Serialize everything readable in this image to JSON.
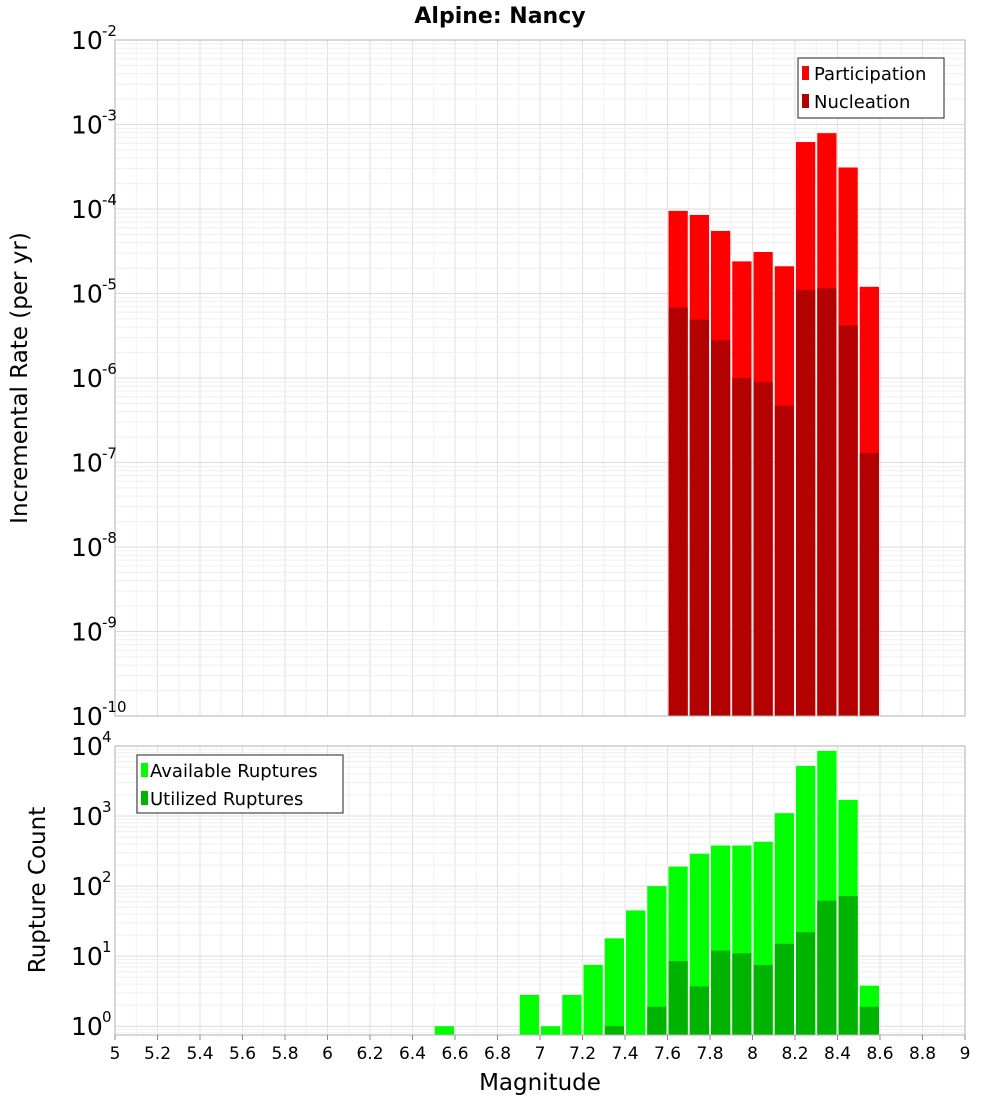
{
  "chart_data": [
    {
      "type": "bar",
      "title": "Alpine: Nancy",
      "ylabel": "Incremental Rate (per yr)",
      "xlabel": "",
      "yscale": "log",
      "ylim": [
        1e-10,
        0.01
      ],
      "xlim": [
        5,
        9
      ],
      "bin_width": 0.1,
      "grid": true,
      "legend_position": "top-right",
      "x": [
        7.65,
        7.75,
        7.85,
        7.95,
        8.05,
        8.15,
        8.25,
        8.35,
        8.45,
        8.55
      ],
      "series": [
        {
          "name": "Participation",
          "color": "#ff0000",
          "values": [
            9.5e-05,
            8.5e-05,
            5.5e-05,
            2.4e-05,
            3.1e-05,
            2.1e-05,
            0.00062,
            0.00079,
            0.00031,
            1.2e-05
          ]
        },
        {
          "name": "Nucleation",
          "color": "#b30000",
          "values": [
            6.8e-06,
            4.9e-06,
            2.8e-06,
            1e-06,
            9e-07,
            4.7e-07,
            1.1e-05,
            1.15e-05,
            4.2e-06,
            1.3e-07
          ]
        }
      ]
    },
    {
      "type": "bar",
      "title": "",
      "ylabel": "Rupture Count",
      "xlabel": "Magnitude",
      "yscale": "log",
      "ylim": [
        0.75,
        10000
      ],
      "xlim": [
        5,
        9
      ],
      "bin_width": 0.1,
      "grid": true,
      "legend_position": "top-left",
      "x_ticks": [
        "5",
        "5.2",
        "5.4",
        "5.6",
        "5.8",
        "6",
        "6.2",
        "6.4",
        "6.6",
        "6.8",
        "7",
        "7.2",
        "7.4",
        "7.6",
        "7.8",
        "8",
        "8.2",
        "8.4",
        "8.6",
        "8.8",
        "9"
      ],
      "x": [
        6.55,
        6.95,
        7.05,
        7.15,
        7.25,
        7.35,
        7.45,
        7.55,
        7.65,
        7.75,
        7.85,
        7.95,
        8.05,
        8.15,
        8.25,
        8.35,
        8.45,
        8.55
      ],
      "series": [
        {
          "name": "Available Ruptures",
          "color": "#00ff00",
          "values": [
            1,
            2.8,
            1,
            2.8,
            7.5,
            18,
            45,
            100,
            190,
            290,
            380,
            380,
            430,
            1100,
            5200,
            8500,
            1700,
            3.8
          ]
        },
        {
          "name": "Utilized Ruptures",
          "color": "#00b300",
          "values": [
            0,
            0,
            0,
            0,
            0,
            1,
            0,
            1.9,
            8.5,
            3.7,
            12,
            11,
            7.5,
            15,
            22,
            62,
            72,
            1.9
          ]
        }
      ]
    }
  ],
  "y_ticks_top": [
    {
      "base": "10",
      "exp": "-2",
      "value": 0.01
    },
    {
      "base": "10",
      "exp": "-3",
      "value": 0.001
    },
    {
      "base": "10",
      "exp": "-4",
      "value": 0.0001
    },
    {
      "base": "10",
      "exp": "-5",
      "value": 1e-05
    },
    {
      "base": "10",
      "exp": "-6",
      "value": 1e-06
    },
    {
      "base": "10",
      "exp": "-7",
      "value": 1e-07
    },
    {
      "base": "10",
      "exp": "-8",
      "value": 1e-08
    },
    {
      "base": "10",
      "exp": "-9",
      "value": 1e-09
    },
    {
      "base": "10",
      "exp": "-10",
      "value": 1e-10
    }
  ],
  "y_ticks_bottom": [
    {
      "base": "10",
      "exp": "4",
      "value": 10000
    },
    {
      "base": "10",
      "exp": "3",
      "value": 1000
    },
    {
      "base": "10",
      "exp": "2",
      "value": 100
    },
    {
      "base": "10",
      "exp": "1",
      "value": 10
    },
    {
      "base": "10",
      "exp": "0",
      "value": 1
    }
  ]
}
